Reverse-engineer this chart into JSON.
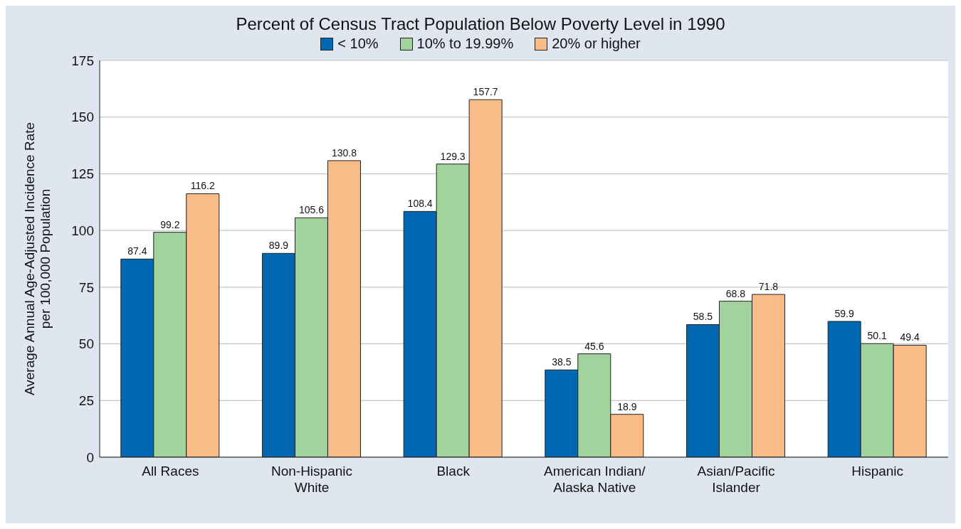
{
  "chart_data": {
    "type": "bar",
    "legend_title": "Percent of Census Tract Population Below Poverty Level in 1990",
    "ylabel": "Average Annual Age-Adjusted Incidence Rate\nper 100,000 Population",
    "categories": [
      "All Races",
      "Non-Hispanic\nWhite",
      "Black",
      "American Indian/\nAlaska Native",
      "Asian/Pacific\nIslander",
      "Hispanic"
    ],
    "series": [
      {
        "name": "< 10%",
        "color": "#0068b3",
        "values": [
          87.4,
          89.9,
          108.4,
          38.5,
          58.5,
          59.9
        ]
      },
      {
        "name": "10% to 19.99%",
        "color": "#a3d39c",
        "values": [
          99.2,
          105.6,
          129.3,
          45.6,
          68.8,
          50.1
        ]
      },
      {
        "name": "20% or higher",
        "color": "#f9bb87",
        "values": [
          116.2,
          130.8,
          157.7,
          18.9,
          71.8,
          49.4
        ]
      }
    ],
    "ylim": [
      0,
      175
    ],
    "yticks": [
      0,
      25,
      50,
      75,
      100,
      125,
      150,
      175
    ],
    "grid": "y",
    "legend": "top",
    "data_labels": true
  }
}
